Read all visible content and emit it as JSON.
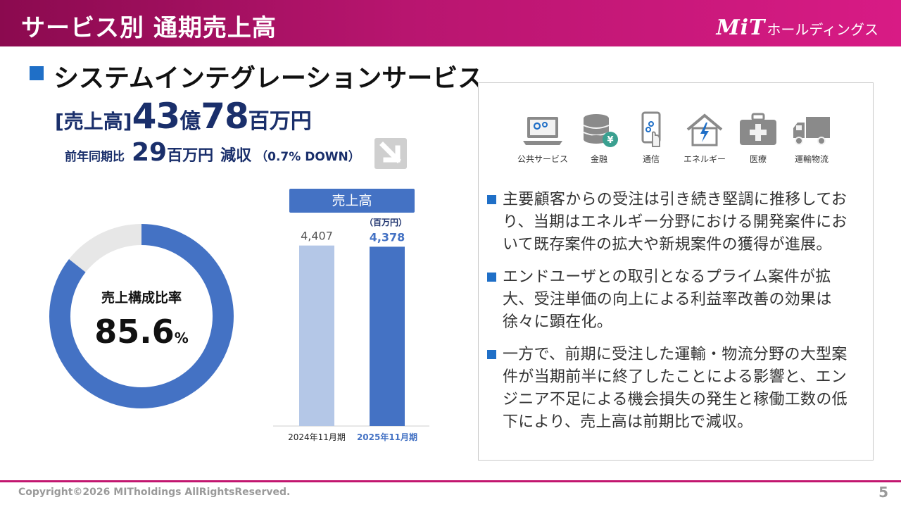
{
  "header": {
    "title": "サービス別 通期売上高",
    "logo_mark": "MiT",
    "logo_text": "ホールディングス"
  },
  "section": {
    "title": "システムインテグレーションサービス"
  },
  "sales": {
    "label": "[売上高]",
    "oku_value": "43",
    "oku_unit": "億",
    "man_value": "78",
    "man_unit": "百万円"
  },
  "yoy": {
    "prefix": "前年同期比",
    "amount": "29",
    "amount_unit": "百万円",
    "result": "減収",
    "percent": "（0.7% DOWN）"
  },
  "donut": {
    "label": "売上構成比率",
    "value": "85.6",
    "unit": "%",
    "share": 85.6,
    "colors": {
      "main": "#4472c4",
      "rest": "#e7e7e7"
    }
  },
  "chart_data": {
    "type": "bar",
    "title": "売上高",
    "unit_label": "（百万円）",
    "categories": [
      "2024年11月期",
      "2025年11月期"
    ],
    "values": [
      4407,
      4378
    ],
    "value_labels": [
      "4,407",
      "4,378"
    ],
    "colors": [
      "#b4c7e7",
      "#4472c4"
    ],
    "label_colors": [
      "#555555",
      "#4472c4"
    ],
    "ylim": [
      0,
      4900
    ]
  },
  "panel": {
    "icons": [
      {
        "name": "public-service-icon",
        "label": "公共サービス"
      },
      {
        "name": "finance-icon",
        "label": "金融"
      },
      {
        "name": "telecom-icon",
        "label": "通信"
      },
      {
        "name": "energy-icon",
        "label": "エネルギー"
      },
      {
        "name": "medical-icon",
        "label": "医療"
      },
      {
        "name": "logistics-icon",
        "label": "運輸物流"
      }
    ],
    "bullets": [
      "主要顧客からの受注は引き続き堅調に推移しており、当期はエネルギー分野における開発案件において既存案件の拡大や新規案件の獲得が進展。",
      "エンドユーザとの取引となるプライム案件が拡大、受注単価の向上による利益率改善の効果は徐々に顕在化。",
      "一方で、前期に受注した運輸・物流分野の大型案件が当期前半に終了したことによる影響と、エンジニア不足による機会損失の発生と稼働工数の低下により、売上高は前期比で減収。"
    ]
  },
  "footer": {
    "copyright": "Copyright©2026 MITholdings AllRightsReserved.",
    "page": "5"
  }
}
